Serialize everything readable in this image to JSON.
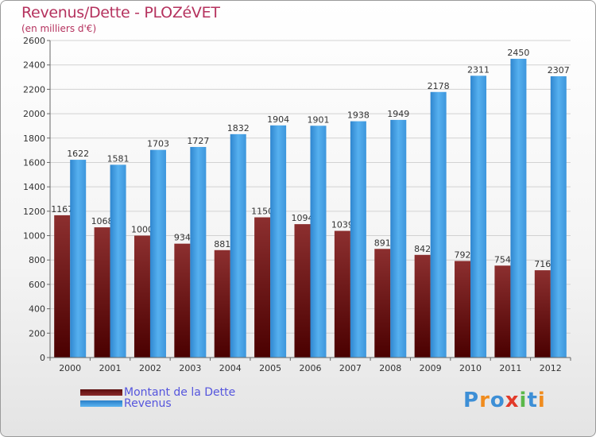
{
  "chart_data": {
    "type": "bar",
    "title": "Revenus/Dette - PLOZéVET",
    "subtitle": "(en milliers d'€)",
    "categories": [
      "2000",
      "2001",
      "2002",
      "2003",
      "2004",
      "2005",
      "2006",
      "2007",
      "2008",
      "2009",
      "2010",
      "2011",
      "2012"
    ],
    "series": [
      {
        "name": "Montant de la Dette",
        "values": [
          1167,
          1068,
          1000,
          934,
          881,
          1150,
          1094,
          1039,
          891,
          842,
          792,
          754,
          716
        ],
        "labels": [
          "1167",
          "1068",
          "1000",
          "934",
          "881",
          "1150",
          "1094",
          "1039",
          "891",
          "842",
          "792",
          "754",
          "716"
        ],
        "color": "#7a1c1c"
      },
      {
        "name": "Revenus",
        "values": [
          1622,
          1581,
          1703,
          1727,
          1832,
          1904,
          1901,
          1938,
          1949,
          2178,
          2311,
          2450,
          2307
        ],
        "labels": [
          "1622",
          "1581",
          "1703",
          "1727",
          "1832",
          "1904",
          "1901",
          "1938",
          "1949",
          "2178",
          "2311",
          "2450",
          "2307"
        ],
        "color": "#3d9ee4"
      }
    ],
    "yticks": [
      "0",
      "200",
      "400",
      "600",
      "800",
      "1000",
      "1200",
      "1400",
      "1600",
      "1800",
      "2000",
      "2200",
      "2400",
      "2600"
    ],
    "ylim": [
      0,
      2600
    ],
    "grid": true,
    "legend_position": "bottom-left"
  },
  "logo": {
    "text": "Proxiti",
    "letters": [
      {
        "ch": "P",
        "color": "#3d8fd6"
      },
      {
        "ch": "r",
        "color": "#f08c1e"
      },
      {
        "ch": "o",
        "color": "#3d8fd6"
      },
      {
        "ch": "x",
        "color": "#e23a2a"
      },
      {
        "ch": "i",
        "color": "#5bb84a"
      },
      {
        "ch": "t",
        "color": "#3d8fd6"
      },
      {
        "ch": "i",
        "color": "#f08c1e"
      }
    ]
  }
}
